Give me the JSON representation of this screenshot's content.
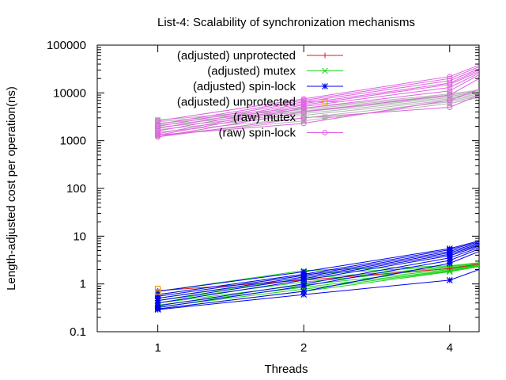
{
  "chart_data": {
    "type": "line",
    "title": "List-4: Scalability of synchronization mechanisms",
    "xlabel": "Threads",
    "ylabel": "Length-adjusted cost per operation(ns)",
    "x_scale": "log2",
    "y_scale": "log10",
    "xlim": [
      0.75,
      4.6
    ],
    "ylim": [
      0.1,
      100000
    ],
    "x_ticks": [
      "1",
      "2",
      "4"
    ],
    "x_tick_values": [
      1,
      2,
      4
    ],
    "y_ticks": [
      "0.1",
      "1",
      "10",
      "100",
      "1000",
      "10000",
      "100000"
    ],
    "y_tick_values": [
      0.1,
      1,
      10,
      100,
      1000,
      10000,
      100000
    ],
    "x": [
      1,
      2,
      4,
      4.6
    ],
    "legend_position": "top-left",
    "series": [
      {
        "name": "(adjusted) unprotected",
        "color": "#e41a1c",
        "marker": "plus",
        "runs": [
          [
            0.72,
            1.2,
            2.1,
            2.6
          ]
        ]
      },
      {
        "name": "(adjusted) mutex",
        "color": "#1fd41f",
        "marker": "cross",
        "runs": [
          [
            0.7,
            1.9,
            2.4,
            2.8
          ],
          [
            0.6,
            1.6,
            2.3,
            2.7
          ],
          [
            0.5,
            1.3,
            2.2,
            2.6
          ],
          [
            0.45,
            1.1,
            2.1,
            2.5
          ],
          [
            0.4,
            0.95,
            2.0,
            2.45
          ],
          [
            0.36,
            0.85,
            1.9,
            2.4
          ],
          [
            0.33,
            0.78,
            1.85,
            2.35
          ],
          [
            0.3,
            0.7,
            1.8,
            2.3
          ]
        ]
      },
      {
        "name": "(adjusted) spin-lock",
        "color": "#0000ee",
        "marker": "star",
        "runs": [
          [
            0.7,
            1.8,
            5.5,
            8.0
          ],
          [
            0.6,
            1.6,
            5.2,
            7.6
          ],
          [
            0.55,
            1.5,
            4.8,
            7.2
          ],
          [
            0.5,
            1.4,
            4.5,
            6.8
          ],
          [
            0.45,
            1.3,
            4.2,
            6.5
          ],
          [
            0.4,
            1.2,
            3.9,
            6.2
          ],
          [
            0.35,
            1.0,
            3.5,
            5.8
          ],
          [
            0.32,
            0.9,
            3.1,
            5.4
          ],
          [
            0.3,
            0.7,
            2.7,
            4.8
          ],
          [
            0.29,
            0.6,
            1.2,
            2.0
          ]
        ]
      },
      {
        "name": "(adjusted) unprotected",
        "color": "#f0a000",
        "marker": "square-open",
        "runs": []
      },
      {
        "name": "(raw) mutex",
        "color": "#b4b4b4",
        "marker": "square",
        "runs": [
          [
            2700,
            4800,
            9500,
            11500
          ],
          [
            2500,
            4500,
            9000,
            11000
          ],
          [
            2300,
            4200,
            8500,
            10500
          ],
          [
            2100,
            4000,
            8000,
            10000
          ],
          [
            1900,
            3700,
            7500,
            9500
          ],
          [
            1700,
            3400,
            7000,
            9000
          ],
          [
            1500,
            3000,
            6500,
            8500
          ],
          [
            1300,
            2600,
            6000,
            8000
          ]
        ]
      },
      {
        "name": "(raw) spin-lock",
        "color": "#e062e0",
        "marker": "circle-open",
        "runs": [
          [
            2600,
            7500,
            22000,
            38000
          ],
          [
            2200,
            7000,
            20000,
            35000
          ],
          [
            2000,
            6500,
            18000,
            32000
          ],
          [
            1800,
            6000,
            16000,
            30000
          ],
          [
            1600,
            5600,
            15000,
            28000
          ],
          [
            1400,
            5200,
            13000,
            26000
          ],
          [
            1300,
            4800,
            11000,
            24000
          ],
          [
            1200,
            4000,
            9000,
            20000
          ],
          [
            1200,
            3000,
            5000,
            9000
          ],
          [
            1300,
            2300,
            7000,
            12000
          ]
        ]
      }
    ]
  }
}
